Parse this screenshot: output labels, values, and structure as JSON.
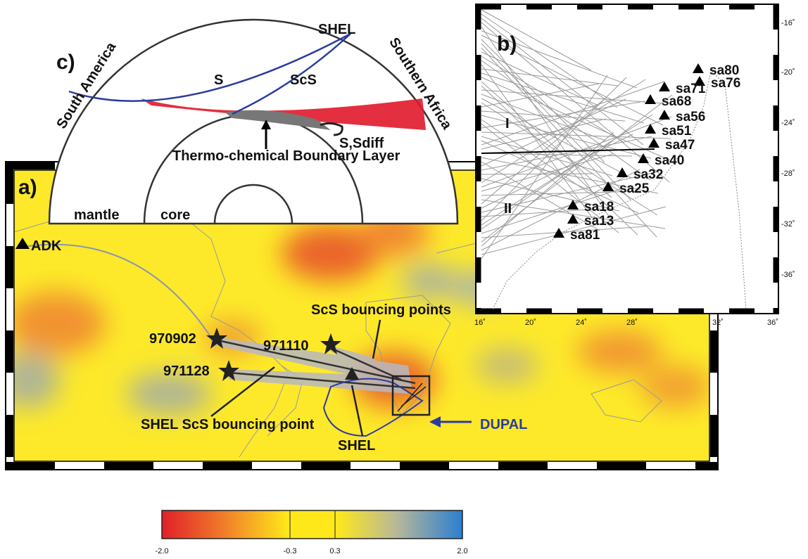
{
  "panel_a": {
    "label": "a)",
    "station": "ADK",
    "events": [
      "970902",
      "971110",
      "971128"
    ],
    "annotations": {
      "scs_bouncing_points": "ScS bouncing points",
      "shel_scs_bouncing_point": "SHEL ScS bouncing point",
      "shel": "SHEL",
      "dupal": "DUPAL"
    }
  },
  "panel_b": {
    "label": "b)",
    "groups": [
      "I",
      "II"
    ],
    "stations": [
      "sa80",
      "sa76",
      "sa71",
      "sa68",
      "sa56",
      "sa51",
      "sa47",
      "sa40",
      "sa32",
      "sa25",
      "sa18",
      "sa13",
      "sa81"
    ],
    "lat_ticks": [
      "-16˚",
      "-20˚",
      "-24˚",
      "-28˚",
      "-32˚",
      "-36˚"
    ],
    "lon_ticks": [
      "16˚",
      "20˚",
      "24˚",
      "28˚",
      "32˚",
      "36˚"
    ]
  },
  "panel_c": {
    "label": "c)",
    "station": "SHEL",
    "left_region": "South America",
    "right_region": "Southern Africa",
    "phases": [
      "S",
      "ScS",
      "S,Sdiff"
    ],
    "layer": "Thermo-chemical Boundary Layer",
    "mantle": "mantle",
    "core": "core"
  },
  "colorbar": {
    "ticks": [
      "-2.0",
      "-0.3",
      "0.3",
      "2.0"
    ]
  }
}
